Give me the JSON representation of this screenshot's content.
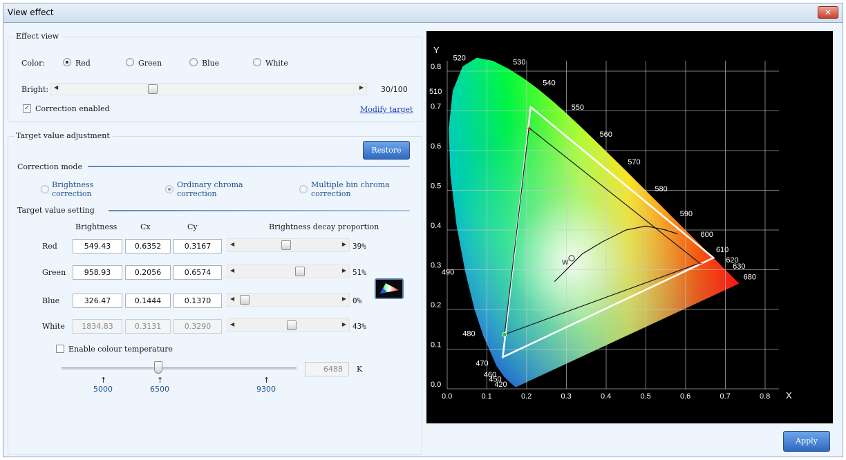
{
  "window": {
    "title": "View effect",
    "close_symbol": "✕"
  },
  "effect_view": {
    "legend": "Effect view",
    "color_label": "Color:",
    "colors": [
      "Red",
      "Green",
      "Blue",
      "White"
    ],
    "selected_color": "Red",
    "bright_label": "Bright:",
    "bright_value": 30,
    "bright_text": "30/100",
    "correction_enabled_label": "Correction enabled",
    "correction_enabled": true,
    "modify_target_label": "Modify target"
  },
  "target_adjustment": {
    "legend": "Target value adjustment",
    "restore_label": "Restore",
    "correction_mode_label": "Correction mode",
    "modes": [
      {
        "line1": "Brightness",
        "line2": "correction",
        "selected": false
      },
      {
        "line1": "Ordinary chroma",
        "line2": "correction",
        "selected": true
      },
      {
        "line1": "Multiple bin chroma",
        "line2": "correction",
        "selected": false
      }
    ],
    "target_value_setting_label": "Target value setting",
    "columns": [
      "Brightness",
      "Cx",
      "Cy",
      "Brightness decay proportion"
    ],
    "rows": [
      {
        "name": "Red",
        "brightness": "549.43",
        "cx": "0.6352",
        "cy": "0.3167",
        "decay": 39,
        "decay_text": "39%",
        "readonly": false
      },
      {
        "name": "Green",
        "brightness": "958.93",
        "cx": "0.2056",
        "cy": "0.6574",
        "decay": 51,
        "decay_text": "51%",
        "readonly": false
      },
      {
        "name": "Blue",
        "brightness": "326.47",
        "cx": "0.1444",
        "cy": "0.1370",
        "decay": 0,
        "decay_text": "0%",
        "readonly": false
      },
      {
        "name": "White",
        "brightness": "1834.83",
        "cx": "0.3131",
        "cy": "0.3290",
        "decay": 43,
        "decay_text": "43%",
        "readonly": true
      }
    ],
    "enable_colour_temp_label": "Enable colour temperature",
    "enable_colour_temp": false,
    "colour_temp_value": "6488",
    "colour_temp_unit": "K",
    "temp_markers": [
      "5000",
      "6500",
      "9300"
    ],
    "marker_arrow": "↑",
    "gamut_icon": "color-gamut-icon"
  },
  "apply_label": "Apply",
  "chart_data": {
    "type": "scatter",
    "title": "",
    "xlabel": "X",
    "ylabel": "Y",
    "xlim": [
      0.0,
      0.8
    ],
    "ylim": [
      0.0,
      0.8
    ],
    "x_ticks": [
      "0.0",
      "0.1",
      "0.2",
      "0.3",
      "0.4",
      "0.5",
      "0.6",
      "0.7",
      "0.8"
    ],
    "y_ticks": [
      "0.0",
      "0.1",
      "0.2",
      "0.3",
      "0.4",
      "0.5",
      "0.6",
      "0.7",
      "0.8"
    ],
    "grid": true,
    "background": "#000000",
    "wavelength_labels": [
      {
        "label": "520",
        "x": 0.074,
        "y": 0.834
      },
      {
        "label": "530",
        "x": 0.155,
        "y": 0.806
      },
      {
        "label": "540",
        "x": 0.23,
        "y": 0.754
      },
      {
        "label": "550",
        "x": 0.302,
        "y": 0.692
      },
      {
        "label": "560",
        "x": 0.373,
        "y": 0.624
      },
      {
        "label": "570",
        "x": 0.444,
        "y": 0.555
      },
      {
        "label": "580",
        "x": 0.512,
        "y": 0.487
      },
      {
        "label": "590",
        "x": 0.575,
        "y": 0.424
      },
      {
        "label": "600",
        "x": 0.627,
        "y": 0.372
      },
      {
        "label": "610",
        "x": 0.666,
        "y": 0.334
      },
      {
        "label": "620",
        "x": 0.691,
        "y": 0.308
      },
      {
        "label": "630",
        "x": 0.708,
        "y": 0.292
      },
      {
        "label": "680",
        "x": 0.735,
        "y": 0.265
      },
      {
        "label": "510",
        "x": 0.014,
        "y": 0.75
      },
      {
        "label": "490",
        "x": 0.045,
        "y": 0.295
      },
      {
        "label": "480",
        "x": 0.091,
        "y": 0.133
      },
      {
        "label": "470",
        "x": 0.124,
        "y": 0.058
      },
      {
        "label": "460",
        "x": 0.144,
        "y": 0.03
      },
      {
        "label": "450",
        "x": 0.157,
        "y": 0.018
      },
      {
        "label": "420",
        "x": 0.171,
        "y": 0.005
      }
    ],
    "reference_triangle": {
      "red": [
        0.67,
        0.33
      ],
      "green": [
        0.21,
        0.71
      ],
      "blue": [
        0.14,
        0.08
      ]
    },
    "target_triangle": {
      "red": [
        0.6352,
        0.3167
      ],
      "green": [
        0.2056,
        0.6574
      ],
      "blue": [
        0.1444,
        0.137
      ]
    },
    "white_point": [
      0.3131,
      0.329
    ],
    "planckian_locus": [
      [
        0.27,
        0.27
      ],
      [
        0.3,
        0.3
      ],
      [
        0.34,
        0.34
      ],
      [
        0.39,
        0.37
      ],
      [
        0.45,
        0.4
      ],
      [
        0.5,
        0.41
      ],
      [
        0.55,
        0.4
      ],
      [
        0.58,
        0.39
      ]
    ],
    "white_point_label": "W"
  }
}
